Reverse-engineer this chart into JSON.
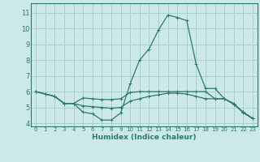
{
  "xlabel": "Humidex (Indice chaleur)",
  "xlim": [
    -0.5,
    23.5
  ],
  "ylim": [
    3.8,
    11.6
  ],
  "yticks": [
    4,
    5,
    6,
    7,
    8,
    9,
    10,
    11
  ],
  "xticks": [
    0,
    1,
    2,
    3,
    4,
    5,
    6,
    7,
    8,
    9,
    10,
    11,
    12,
    13,
    14,
    15,
    16,
    17,
    18,
    19,
    20,
    21,
    22,
    23
  ],
  "bg_color": "#cce9e7",
  "grid_color": "#aacfcd",
  "line_color": "#2a7a6e",
  "curves": [
    [
      6.0,
      5.85,
      5.7,
      5.25,
      5.25,
      4.7,
      4.6,
      4.2,
      4.2,
      4.65,
      6.5,
      8.0,
      8.7,
      9.9,
      10.85,
      10.7,
      10.5,
      7.75,
      6.2,
      6.2,
      5.55,
      5.25,
      4.65,
      4.3
    ],
    [
      6.0,
      5.85,
      5.7,
      5.25,
      5.25,
      5.6,
      5.55,
      5.5,
      5.5,
      5.55,
      5.95,
      6.0,
      6.0,
      6.0,
      6.0,
      6.0,
      6.0,
      6.0,
      6.0,
      5.55,
      5.55,
      5.2,
      4.7,
      4.3
    ],
    [
      6.0,
      5.85,
      5.7,
      5.25,
      5.25,
      5.1,
      5.05,
      5.0,
      4.95,
      5.0,
      5.4,
      5.55,
      5.7,
      5.8,
      5.9,
      5.9,
      5.85,
      5.7,
      5.55,
      5.55,
      5.55,
      5.2,
      4.7,
      4.3
    ]
  ],
  "marker": "+"
}
